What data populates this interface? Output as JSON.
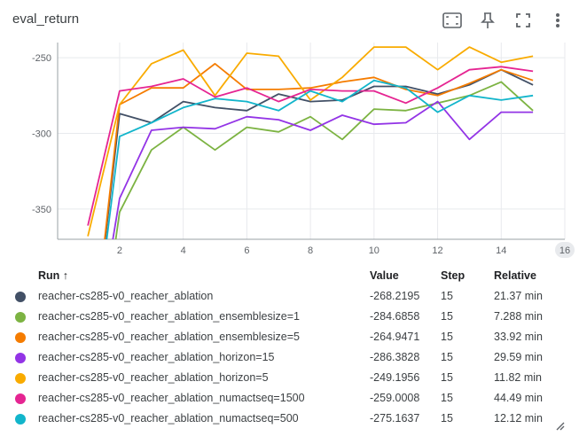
{
  "card": {
    "title": "eval_return",
    "icons": [
      "fit-to-data-icon",
      "pin-icon",
      "fullscreen-icon",
      "more-vert-icon"
    ]
  },
  "chart_data": {
    "type": "line",
    "xlim": [
      0.05,
      16
    ],
    "ylim": [
      -370,
      -240
    ],
    "x_ticks": [
      "2",
      "4",
      "6",
      "8",
      "10",
      "12",
      "14"
    ],
    "x_tick_values": [
      2,
      4,
      6,
      8,
      10,
      12,
      14
    ],
    "x_last_tick": "16",
    "y_ticks": [
      "-250",
      "-300",
      "-350"
    ],
    "y_tick_values": [
      -250,
      -300,
      -350
    ],
    "grid": true,
    "x": [
      1,
      2,
      3,
      4,
      5,
      6,
      7,
      8,
      9,
      10,
      11,
      12,
      13,
      14,
      15
    ],
    "series": [
      {
        "name": "reacher-cs285-v0_reacher_ablation",
        "color": "#425066",
        "values": [
          -470,
          -287,
          -293,
          -279,
          -283,
          -285,
          -274,
          -279,
          -278,
          -269,
          -269,
          -274,
          -268,
          -258,
          -268
        ]
      },
      {
        "name": "reacher-cs285-v0_reacher_ablation_ensemblesize=1",
        "color": "#7cb342",
        "values": [
          -500,
          -352,
          -311,
          -296,
          -311,
          -296,
          -299,
          -289,
          -304,
          -284,
          -285,
          -280,
          -275,
          -266,
          -285
        ]
      },
      {
        "name": "reacher-cs285-v0_reacher_ablation_ensemblesize=5",
        "color": "#f57c00",
        "values": [
          -470,
          -281,
          -270,
          -270,
          -254,
          -271,
          -271,
          -270,
          -266,
          -263,
          -271,
          -275,
          -267,
          -258,
          -265
        ]
      },
      {
        "name": "reacher-cs285-v0_reacher_ablation_horizon=15",
        "color": "#9334e6",
        "values": [
          -470,
          -343,
          -298,
          -296,
          -297,
          -289,
          -291,
          -298,
          -288,
          -294,
          -293,
          -279,
          -304,
          -286,
          -286
        ]
      },
      {
        "name": "reacher-cs285-v0_reacher_ablation_horizon=5",
        "color": "#f9ab00",
        "values": [
          -368,
          -281,
          -254,
          -245,
          -275,
          -247,
          -249,
          -278,
          -263,
          -243,
          -243,
          -258,
          -243,
          -253,
          -249
        ]
      },
      {
        "name": "reacher-cs285-v0_reacher_ablation_numactseq=1500",
        "color": "#e52592",
        "values": [
          -361,
          -272,
          -269,
          -264,
          -276,
          -270,
          -279,
          -271,
          -272,
          -272,
          -280,
          -270,
          -258,
          -256,
          -259
        ]
      },
      {
        "name": "reacher-cs285-v0_reacher_ablation_numactseq=500",
        "color": "#12b5cb",
        "values": [
          -470,
          -302,
          -293,
          -283,
          -277,
          -279,
          -285,
          -272,
          -279,
          -265,
          -270,
          -286,
          -275,
          -278,
          -275
        ]
      }
    ]
  },
  "table": {
    "headers": {
      "run": "Run",
      "value": "Value",
      "step": "Step",
      "relative": "Relative"
    },
    "sort_indicator": "↑",
    "rows": [
      {
        "color": "#425066",
        "run": "reacher-cs285-v0_reacher_ablation",
        "value": "-268.2195",
        "step": "15",
        "relative": "21.37 min"
      },
      {
        "color": "#7cb342",
        "run": "reacher-cs285-v0_reacher_ablation_ensemblesize=1",
        "value": "-284.6858",
        "step": "15",
        "relative": "7.288 min"
      },
      {
        "color": "#f57c00",
        "run": "reacher-cs285-v0_reacher_ablation_ensemblesize=5",
        "value": "-264.9471",
        "step": "15",
        "relative": "33.92 min"
      },
      {
        "color": "#9334e6",
        "run": "reacher-cs285-v0_reacher_ablation_horizon=15",
        "value": "-286.3828",
        "step": "15",
        "relative": "29.59 min"
      },
      {
        "color": "#f9ab00",
        "run": "reacher-cs285-v0_reacher_ablation_horizon=5",
        "value": "-249.1956",
        "step": "15",
        "relative": "11.82 min"
      },
      {
        "color": "#e52592",
        "run": "reacher-cs285-v0_reacher_ablation_numactseq=1500",
        "value": "-259.0008",
        "step": "15",
        "relative": "44.49 min"
      },
      {
        "color": "#12b5cb",
        "run": "reacher-cs285-v0_reacher_ablation_numactseq=500",
        "value": "-275.1637",
        "step": "15",
        "relative": "12.12 min"
      }
    ]
  }
}
